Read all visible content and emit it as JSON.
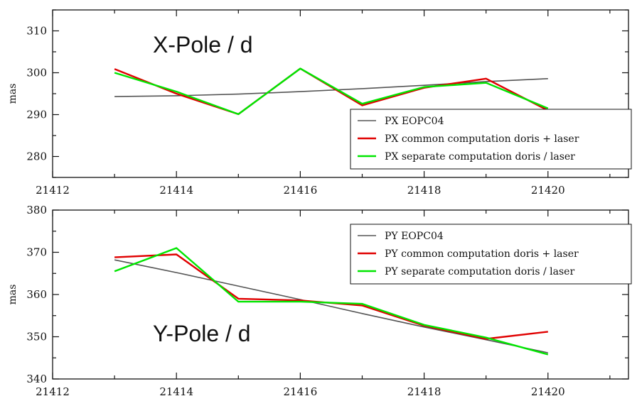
{
  "chart_data": [
    {
      "type": "line",
      "title": "X-Pole / d",
      "ylabel": "mas",
      "xlim": [
        21412,
        21421.3
      ],
      "ylim": [
        275,
        315
      ],
      "xticks": [
        21412,
        21414,
        21416,
        21418,
        21420
      ],
      "xtick_labels": [
        "21412",
        "21414",
        "21416",
        "21418",
        "21420"
      ],
      "yticks": [
        280,
        290,
        300,
        310
      ],
      "ytick_labels": [
        "280",
        "290",
        "300",
        "310"
      ],
      "x": [
        21413,
        21414,
        21415,
        21416,
        21417,
        21418,
        21419,
        21420
      ],
      "legend_position": "bottom-right",
      "series": [
        {
          "name": "PX EOPC04",
          "color": "#555555",
          "values": [
            294.3,
            294.5,
            294.9,
            295.5,
            296.2,
            297.0,
            297.9,
            298.6
          ]
        },
        {
          "name": "PX common computation doris + laser",
          "color": "#e00000",
          "values": [
            300.9,
            295.0,
            290.1,
            301.0,
            292.2,
            296.4,
            298.6,
            291.0
          ]
        },
        {
          "name": "PX separate computation doris / laser",
          "color": "#00e600",
          "values": [
            300.0,
            295.5,
            290.1,
            301.0,
            292.6,
            296.6,
            297.6,
            291.5
          ]
        }
      ]
    },
    {
      "type": "line",
      "title": "Y-Pole / d",
      "ylabel": "mas",
      "xlim": [
        21412,
        21421.3
      ],
      "ylim": [
        340,
        380
      ],
      "xticks": [
        21412,
        21414,
        21416,
        21418,
        21420
      ],
      "xtick_labels": [
        "21412",
        "21414",
        "21416",
        "21418",
        "21420"
      ],
      "yticks": [
        340,
        350,
        360,
        370,
        380
      ],
      "ytick_labels": [
        "340",
        "350",
        "360",
        "370",
        "380"
      ],
      "x": [
        21413,
        21414,
        21415,
        21416,
        21417,
        21418,
        21419,
        21420
      ],
      "legend_position": "top-right",
      "series": [
        {
          "name": "PY EOPC04",
          "color": "#555555",
          "values": [
            368.2,
            365.2,
            362.0,
            358.8,
            355.5,
            352.3,
            349.3,
            346.2
          ]
        },
        {
          "name": "PY common computation doris + laser",
          "color": "#e00000",
          "values": [
            368.8,
            369.5,
            359.0,
            358.6,
            357.4,
            352.6,
            349.5,
            351.2
          ]
        },
        {
          "name": "PY separate computation doris / laser",
          "color": "#00e600",
          "values": [
            365.5,
            371.0,
            358.3,
            358.3,
            357.8,
            352.8,
            349.8,
            345.8
          ]
        }
      ]
    }
  ]
}
